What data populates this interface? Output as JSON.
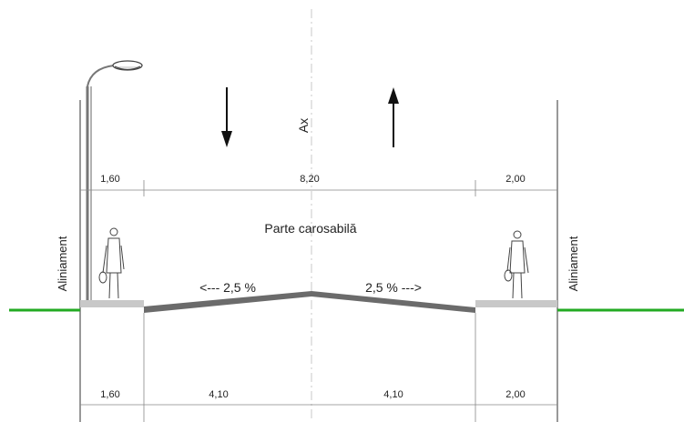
{
  "top_dimensions": [
    "1,60",
    "8,20",
    "2,00"
  ],
  "bottom_dimensions": [
    "1,60",
    "4,10",
    "4,10",
    "2,00"
  ],
  "axis_label": "Ax",
  "roadway_label": "Parte carosabilă",
  "slope_left": "<--- 2,5 %",
  "slope_right": "2,5 % --->",
  "alignment_left": "Aliniament",
  "alignment_right": "Aliniament",
  "colors": {
    "ground": "#22aa22",
    "pavement": "#6b6b6b",
    "sidewalk": "#c8c8c8",
    "lines": "#555555"
  }
}
